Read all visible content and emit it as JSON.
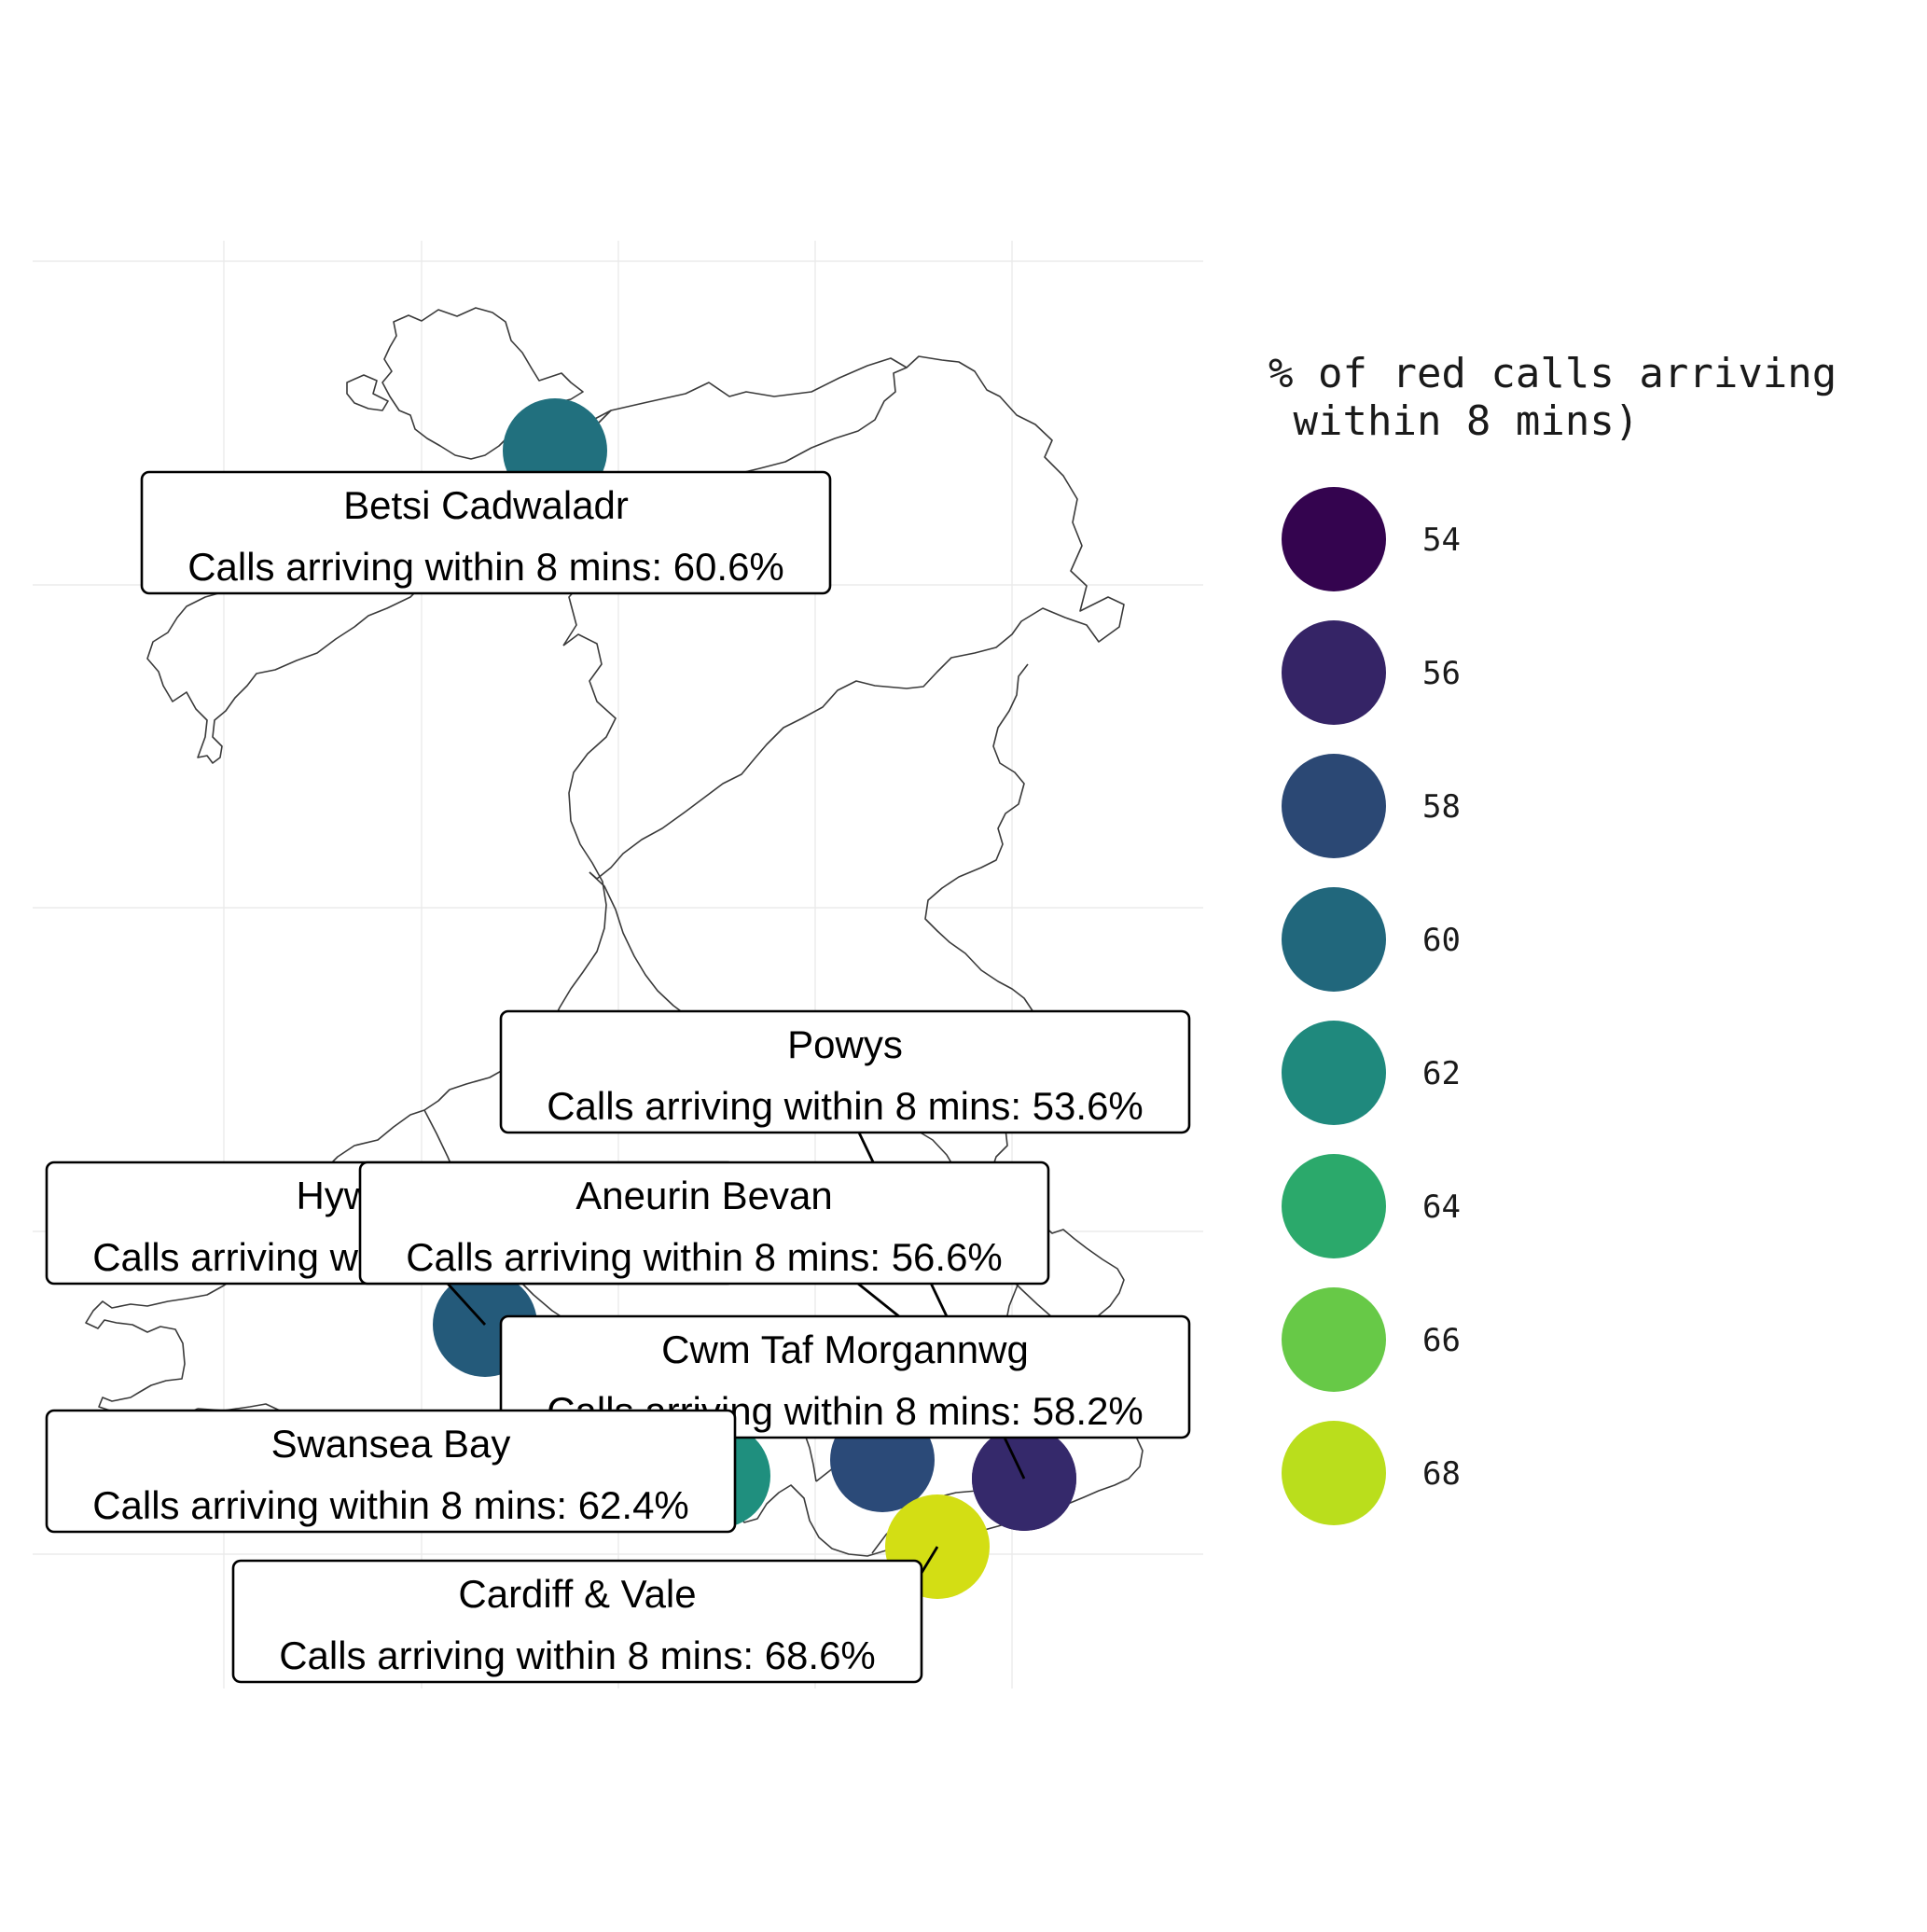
{
  "map": {
    "legend": {
      "title_line1": "% of red calls arriving",
      "title_line2": " within 8 mins)",
      "items": [
        {
          "value": "54",
          "color": "#34044F"
        },
        {
          "value": "56",
          "color": "#352466"
        },
        {
          "value": "58",
          "color": "#2B4874"
        },
        {
          "value": "60",
          "color": "#21677C"
        },
        {
          "value": "62",
          "color": "#1F897D"
        },
        {
          "value": "64",
          "color": "#2BA96B"
        },
        {
          "value": "66",
          "color": "#67C947"
        },
        {
          "value": "68",
          "color": "#BADE1C"
        }
      ]
    },
    "boards": [
      {
        "name": "Betsi Cadwaladr",
        "value_text": "Calls arriving within 8 mins: 60.6%",
        "value": 60.6,
        "color": "#21707E"
      },
      {
        "name": "Powys",
        "value_text": "Calls arriving within 8 mins: 53.6%",
        "value": 53.6,
        "color": "#2E0C4F"
      },
      {
        "name": "Hywel Dda",
        "value_text": "Calls arriving within 8 mins: 59.4%",
        "value": 59.4,
        "color": "#245A7A"
      },
      {
        "name": "Aneurin Bevan",
        "value_text": "Calls arriving within 8 mins: 56.6%",
        "value": 56.6,
        "color": "#35296B"
      },
      {
        "name": "Cwm Taf Morgannwg",
        "value_text": "Calls arriving within 8 mins: 58.2%",
        "value": 58.2,
        "color": "#2B4A78"
      },
      {
        "name": "Swansea Bay",
        "value_text": "Calls arriving within 8 mins: 62.4%",
        "value": 62.4,
        "color": "#1F8F7E"
      },
      {
        "name": "Cardiff & Vale",
        "value_text": "Calls arriving within 8 mins: 68.6%",
        "value": 68.6,
        "color": "#D3DE14"
      }
    ]
  }
}
